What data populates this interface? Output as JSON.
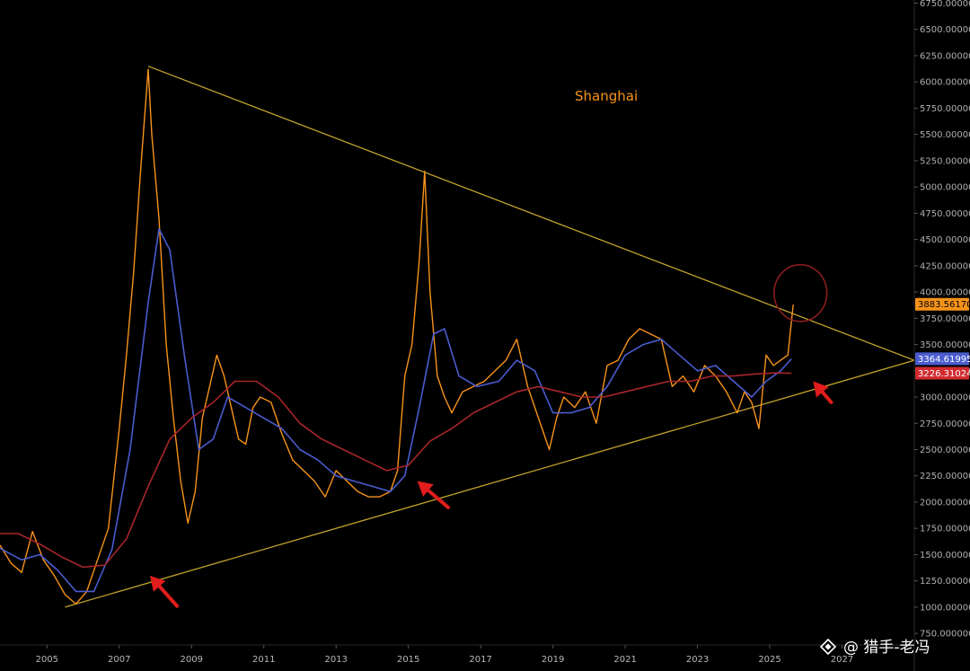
{
  "chart_data": {
    "type": "line",
    "title": "Shanghai",
    "x_ticks": [
      "2005",
      "2007",
      "2009",
      "2011",
      "2013",
      "2015",
      "2017",
      "2019",
      "2021",
      "2023",
      "2025",
      "2027"
    ],
    "y_ticks": [
      "750.000000",
      "1000.000000",
      "1250.000000",
      "1500.000000",
      "1750.000000",
      "2000.000000",
      "2250.000000",
      "2500.000000",
      "2750.000000",
      "3000.000000",
      "3250.000000",
      "3500.000000",
      "3750.000000",
      "4000.000000",
      "4250.000000",
      "4500.000000",
      "4750.000000",
      "5000.000000",
      "5250.000000",
      "5500.000000",
      "5750.000000",
      "6000.000000",
      "6250.000000",
      "6500.000000",
      "6750.000000"
    ],
    "xlim": [
      2003.7,
      2029.0
    ],
    "ylim": [
      640,
      6780
    ],
    "series": [
      {
        "color": "#f7931a",
        "x": [
          2003.7,
          2004.0,
          2004.3,
          2004.6,
          2004.9,
          2005.2,
          2005.5,
          2005.8,
          2006.1,
          2006.4,
          2006.7,
          2007.0,
          2007.2,
          2007.4,
          2007.6,
          2007.8,
          2007.9,
          2008.1,
          2008.3,
          2008.5,
          2008.7,
          2008.9,
          2009.1,
          2009.3,
          2009.5,
          2009.7,
          2009.9,
          2010.1,
          2010.3,
          2010.5,
          2010.7,
          2010.9,
          2011.2,
          2011.5,
          2011.8,
          2012.1,
          2012.4,
          2012.7,
          2013.0,
          2013.3,
          2013.6,
          2013.9,
          2014.2,
          2014.5,
          2014.7,
          2014.9,
          2015.1,
          2015.3,
          2015.45,
          2015.6,
          2015.8,
          2016.0,
          2016.2,
          2016.5,
          2016.8,
          2017.1,
          2017.4,
          2017.7,
          2018.0,
          2018.3,
          2018.6,
          2018.9,
          2019.1,
          2019.3,
          2019.6,
          2019.9,
          2020.2,
          2020.5,
          2020.8,
          2021.1,
          2021.4,
          2021.7,
          2022.0,
          2022.3,
          2022.6,
          2022.9,
          2023.2,
          2023.5,
          2023.8,
          2024.1,
          2024.3,
          2024.5,
          2024.7,
          2024.9,
          2025.1,
          2025.3,
          2025.5,
          2025.65
        ],
        "values": [
          1590,
          1420,
          1330,
          1720,
          1450,
          1300,
          1120,
          1030,
          1150,
          1450,
          1750,
          2700,
          3400,
          4200,
          5200,
          6120,
          5500,
          4700,
          3500,
          2800,
          2200,
          1800,
          2100,
          2800,
          3100,
          3400,
          3200,
          2900,
          2600,
          2550,
          2900,
          3000,
          2950,
          2650,
          2400,
          2300,
          2200,
          2050,
          2300,
          2200,
          2100,
          2050,
          2050,
          2100,
          2300,
          3200,
          3500,
          4300,
          5150,
          4000,
          3200,
          3000,
          2850,
          3050,
          3100,
          3150,
          3250,
          3350,
          3550,
          3100,
          2800,
          2500,
          2800,
          3000,
          2900,
          3050,
          2750,
          3300,
          3350,
          3550,
          3650,
          3600,
          3550,
          3100,
          3200,
          3050,
          3300,
          3200,
          3050,
          2850,
          3050,
          2950,
          2700,
          3400,
          3300,
          3350,
          3400,
          3880
        ]
      },
      {
        "color": "#4a5ccf",
        "x": [
          2003.7,
          2004.3,
          2004.8,
          2005.3,
          2005.8,
          2006.3,
          2006.8,
          2007.3,
          2007.8,
          2008.1,
          2008.4,
          2008.8,
          2009.2,
          2009.6,
          2010.0,
          2010.5,
          2011.0,
          2011.5,
          2012.0,
          2012.5,
          2013.0,
          2013.5,
          2014.0,
          2014.5,
          2014.9,
          2015.3,
          2015.7,
          2016.0,
          2016.4,
          2016.9,
          2017.5,
          2018.0,
          2018.5,
          2019.0,
          2019.5,
          2020.0,
          2020.5,
          2021.0,
          2021.5,
          2022.0,
          2022.5,
          2023.0,
          2023.5,
          2024.0,
          2024.5,
          2024.9,
          2025.3,
          2025.6
        ],
        "values": [
          1560,
          1450,
          1500,
          1350,
          1150,
          1150,
          1550,
          2500,
          3900,
          4600,
          4400,
          3400,
          2500,
          2600,
          3000,
          2900,
          2800,
          2700,
          2500,
          2400,
          2250,
          2200,
          2150,
          2100,
          2250,
          2900,
          3600,
          3650,
          3200,
          3100,
          3150,
          3350,
          3250,
          2850,
          2850,
          2900,
          3100,
          3400,
          3500,
          3550,
          3400,
          3250,
          3300,
          3150,
          3000,
          3150,
          3250,
          3364
        ]
      },
      {
        "color": "#a8262a",
        "x": [
          2003.7,
          2004.2,
          2004.8,
          2005.4,
          2006.0,
          2006.6,
          2007.2,
          2007.8,
          2008.4,
          2009.0,
          2009.6,
          2010.2,
          2010.8,
          2011.4,
          2012.0,
          2012.6,
          2013.2,
          2013.8,
          2014.4,
          2015.0,
          2015.6,
          2016.2,
          2016.8,
          2017.4,
          2018.0,
          2018.6,
          2019.2,
          2019.8,
          2020.4,
          2021.0,
          2021.6,
          2022.2,
          2022.8,
          2023.4,
          2024.0,
          2024.6,
          2025.2,
          2025.6
        ],
        "values": [
          1700,
          1700,
          1600,
          1480,
          1380,
          1400,
          1650,
          2150,
          2600,
          2800,
          2950,
          3150,
          3150,
          3000,
          2750,
          2600,
          2500,
          2400,
          2300,
          2350,
          2580,
          2700,
          2850,
          2950,
          3050,
          3100,
          3050,
          3000,
          3000,
          3050,
          3100,
          3150,
          3150,
          3200,
          3200,
          3220,
          3230,
          3226
        ]
      }
    ],
    "trendlines": [
      {
        "color": "#c2a42c",
        "x": [
          2007.8,
          2029.0
        ],
        "values": [
          6150,
          3350
        ]
      },
      {
        "color": "#c2a42c",
        "x": [
          2005.5,
          2029.0
        ],
        "values": [
          1000,
          3350
        ]
      }
    ],
    "price_tags": [
      {
        "label": "3883.56170",
        "value": 3883.56,
        "color": "#f7931a",
        "text_color": "#000000"
      },
      {
        "label": "3364.61995",
        "value": 3364.62,
        "color": "#4a5ccf",
        "text_color": "#ffffff"
      },
      {
        "label": "3226.31024",
        "value": 3226.31,
        "color": "#d12b30",
        "text_color": "#ffffff"
      }
    ],
    "annotations": [
      {
        "type": "arrow",
        "color": "#e11d1d",
        "from": [
          2008.6,
          1010
        ],
        "to": [
          2007.85,
          1300
        ]
      },
      {
        "type": "arrow",
        "color": "#e11d1d",
        "from": [
          2016.1,
          1950
        ],
        "to": [
          2015.25,
          2200
        ]
      },
      {
        "type": "arrow",
        "color": "#e11d1d",
        "from": [
          2026.7,
          2950
        ],
        "to": [
          2026.2,
          3150
        ]
      },
      {
        "type": "circle",
        "color": "#8a1c1c",
        "center": [
          2025.85,
          3990
        ],
        "radius_y": 270
      }
    ],
    "grid": false,
    "legend": "none"
  },
  "watermark": {
    "text": "@ 猎手-老冯"
  }
}
